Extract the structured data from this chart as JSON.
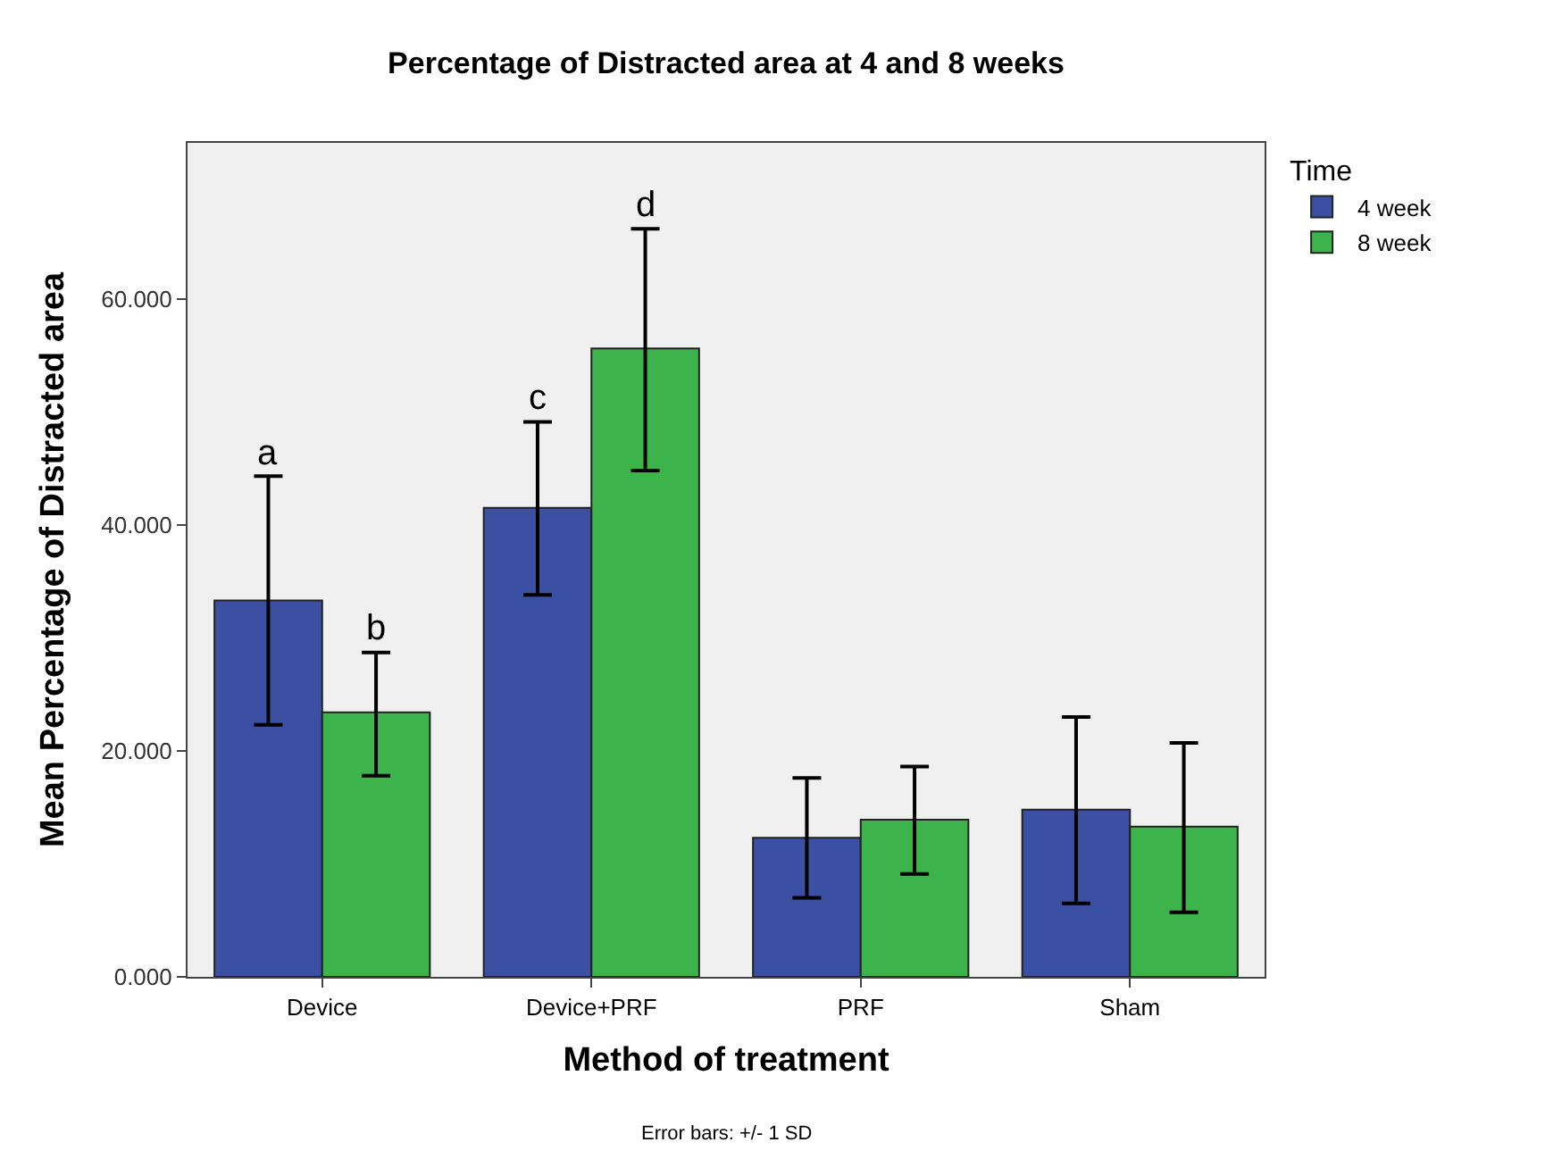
{
  "chart_data": {
    "type": "bar",
    "title": "Percentage of Distracted area at 4 and 8 weeks",
    "xlabel": "Method of treatment",
    "ylabel": "Mean Percentage of Distracted area",
    "legend_title": "Time",
    "categories": [
      "Device",
      "Device+PRF",
      "PRF",
      "Sham"
    ],
    "series": [
      {
        "name": "4 week",
        "color": "#3b4fa3",
        "values": [
          33.3,
          41.5,
          12.3,
          14.8
        ],
        "errors": [
          [
            22.3,
            44.3
          ],
          [
            33.8,
            49.1
          ],
          [
            7.0,
            17.6
          ],
          [
            6.5,
            23.0
          ]
        ]
      },
      {
        "name": "8 week",
        "color": "#3cb44b",
        "values": [
          23.4,
          55.6,
          13.9,
          13.3
        ],
        "errors": [
          [
            17.8,
            28.7
          ],
          [
            44.8,
            66.2
          ],
          [
            9.1,
            18.6
          ],
          [
            5.7,
            20.7
          ]
        ]
      }
    ],
    "ylim": [
      0,
      73.8
    ],
    "yticks": [
      {
        "value": 0,
        "label": "0.000"
      },
      {
        "value": 20,
        "label": "20.000"
      },
      {
        "value": 40,
        "label": "40.000"
      },
      {
        "value": 60,
        "label": "60.000"
      }
    ],
    "grid": false,
    "legend": "top right",
    "annotations": [
      "a",
      "b",
      "c",
      "d",
      "Error bars: +/- 1 SD"
    ]
  }
}
